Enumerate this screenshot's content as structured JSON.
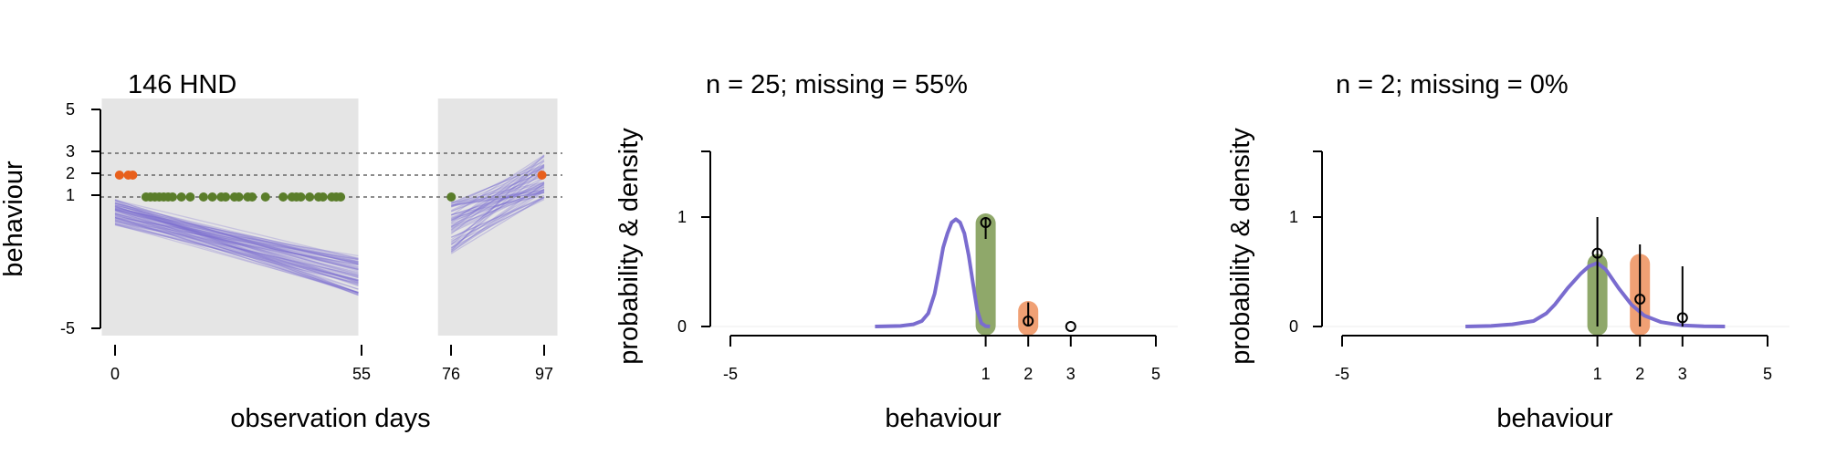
{
  "chart_data": [
    {
      "id": "panel1",
      "type": "scatter",
      "title": "146 HND",
      "xlabel": "observation days",
      "ylabel": "behaviour",
      "xticks": [
        "0",
        "55",
        "76",
        "97"
      ],
      "yticks": [
        "5",
        "3",
        "2",
        "1",
        "-5"
      ],
      "xlim": [
        0,
        97
      ],
      "ylim": [
        -5,
        5
      ],
      "reference_lines_y": [
        3,
        2,
        1
      ],
      "shaded_periods": [
        [
          -3,
          55
        ],
        [
          73,
          100
        ]
      ],
      "points_orange": [
        [
          1,
          2
        ],
        [
          3,
          2
        ],
        [
          4,
          2
        ],
        [
          96.5,
          2
        ]
      ],
      "points_green": [
        [
          7,
          1
        ],
        [
          8,
          1
        ],
        [
          9,
          1
        ],
        [
          10,
          1
        ],
        [
          11,
          1
        ],
        [
          12,
          1
        ],
        [
          13,
          1
        ],
        [
          15,
          1
        ],
        [
          17,
          1
        ],
        [
          20,
          1
        ],
        [
          22,
          1
        ],
        [
          24,
          1
        ],
        [
          25,
          1
        ],
        [
          27,
          1
        ],
        [
          28,
          1
        ],
        [
          30,
          1
        ],
        [
          31,
          1
        ],
        [
          34,
          1
        ],
        [
          38,
          1
        ],
        [
          40,
          1
        ],
        [
          41,
          1
        ],
        [
          42,
          1
        ],
        [
          44,
          1
        ],
        [
          46,
          1
        ],
        [
          47,
          1
        ],
        [
          49,
          1
        ],
        [
          50,
          1
        ],
        [
          51,
          1
        ],
        [
          76,
          1
        ]
      ],
      "colors": {
        "shade": "#e5e5e5",
        "lines": "#7a6ccf",
        "orange": "#e8601c",
        "green": "#5a7d2a"
      }
    },
    {
      "id": "panel2",
      "type": "bar",
      "title": "n = 25; missing = 55%",
      "xlabel": "behaviour",
      "ylabel": "probability & density",
      "xticks": [
        "-5",
        "1",
        "2",
        "3",
        "5"
      ],
      "yticks": [
        "0",
        "1"
      ],
      "xlim": [
        -5,
        5
      ],
      "ylim": [
        0,
        1.5
      ],
      "categories": [
        "1",
        "2",
        "3"
      ],
      "bars": [
        {
          "x": 1,
          "value": 0.95
        },
        {
          "x": 2,
          "value": 0.15
        }
      ],
      "observed": [
        {
          "x": 1,
          "p": 0.95,
          "lo": 0.8,
          "hi": 1.0
        },
        {
          "x": 2,
          "p": 0.05,
          "lo": 0.0,
          "hi": 0.22
        },
        {
          "x": 3,
          "p": 0.0,
          "lo": 0.0,
          "hi": 0.0
        }
      ],
      "density": [
        [
          -1.6,
          0
        ],
        [
          -1.0,
          0.005
        ],
        [
          -0.7,
          0.02
        ],
        [
          -0.5,
          0.05
        ],
        [
          -0.35,
          0.12
        ],
        [
          -0.2,
          0.3
        ],
        [
          -0.1,
          0.5
        ],
        [
          0.0,
          0.72
        ],
        [
          0.1,
          0.85
        ],
        [
          0.2,
          0.95
        ],
        [
          0.3,
          0.98
        ],
        [
          0.4,
          0.95
        ],
        [
          0.5,
          0.85
        ],
        [
          0.6,
          0.65
        ],
        [
          0.7,
          0.4
        ],
        [
          0.8,
          0.15
        ],
        [
          0.9,
          0.03
        ],
        [
          1.0,
          0.003
        ],
        [
          1.1,
          0
        ]
      ],
      "colors": {
        "green": "#8fa86a",
        "orange": "#f0a074",
        "density": "#7a6ccf"
      }
    },
    {
      "id": "panel3",
      "type": "bar",
      "title": "n = 2; missing = 0%",
      "xlabel": "behaviour",
      "ylabel": "probability & density",
      "xticks": [
        "-5",
        "1",
        "2",
        "3",
        "5"
      ],
      "yticks": [
        "0",
        "1"
      ],
      "xlim": [
        -5,
        5
      ],
      "ylim": [
        0,
        1.5
      ],
      "categories": [
        "1",
        "2",
        "3"
      ],
      "bars": [
        {
          "x": 1,
          "value": 0.58
        },
        {
          "x": 2,
          "value": 0.58
        }
      ],
      "observed": [
        {
          "x": 1,
          "p": 0.67,
          "lo": 0.0,
          "hi": 1.0
        },
        {
          "x": 2,
          "p": 0.25,
          "lo": 0.0,
          "hi": 0.75
        },
        {
          "x": 3,
          "p": 0.08,
          "lo": 0.0,
          "hi": 0.55
        }
      ],
      "density": [
        [
          -2.1,
          0
        ],
        [
          -1.5,
          0.005
        ],
        [
          -1.0,
          0.02
        ],
        [
          -0.5,
          0.05
        ],
        [
          -0.2,
          0.12
        ],
        [
          0.0,
          0.2
        ],
        [
          0.3,
          0.35
        ],
        [
          0.6,
          0.48
        ],
        [
          0.8,
          0.55
        ],
        [
          1.0,
          0.58
        ],
        [
          1.2,
          0.52
        ],
        [
          1.5,
          0.35
        ],
        [
          1.8,
          0.2
        ],
        [
          2.1,
          0.1
        ],
        [
          2.5,
          0.04
        ],
        [
          3.0,
          0.01
        ],
        [
          3.5,
          0.002
        ],
        [
          4.0,
          0
        ]
      ],
      "colors": {
        "green": "#8fa86a",
        "orange": "#f0a074",
        "density": "#7a6ccf"
      }
    }
  ]
}
